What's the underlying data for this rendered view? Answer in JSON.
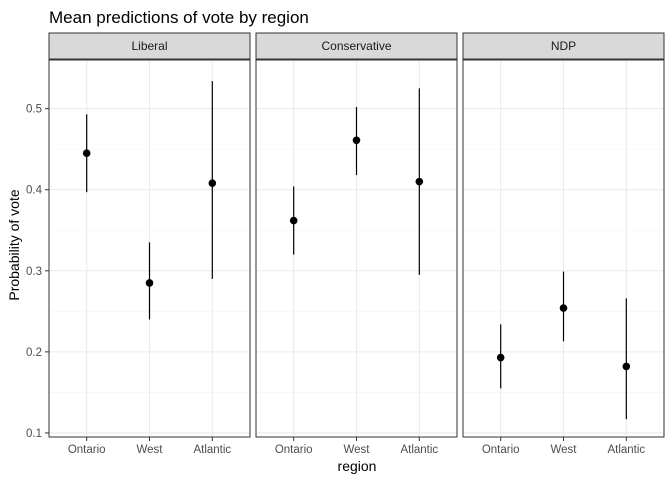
{
  "chart_data": {
    "type": "scatter",
    "title": "Mean predictions of vote by region",
    "xlabel": "region",
    "ylabel": "Probability of vote",
    "categories": [
      "Ontario",
      "West",
      "Atlantic"
    ],
    "ylim": [
      0.095,
      0.56
    ],
    "yticks": [
      0.1,
      0.2,
      0.3,
      0.4,
      0.5
    ],
    "grid": true,
    "facets": [
      {
        "name": "Liberal",
        "points": [
          {
            "x": "Ontario",
            "y": 0.445,
            "lower": 0.397,
            "upper": 0.493
          },
          {
            "x": "West",
            "y": 0.285,
            "lower": 0.24,
            "upper": 0.335
          },
          {
            "x": "Atlantic",
            "y": 0.408,
            "lower": 0.29,
            "upper": 0.534
          }
        ]
      },
      {
        "name": "Conservative",
        "points": [
          {
            "x": "Ontario",
            "y": 0.362,
            "lower": 0.32,
            "upper": 0.404
          },
          {
            "x": "West",
            "y": 0.461,
            "lower": 0.418,
            "upper": 0.502
          },
          {
            "x": "Atlantic",
            "y": 0.41,
            "lower": 0.295,
            "upper": 0.525
          }
        ]
      },
      {
        "name": "NDP",
        "points": [
          {
            "x": "Ontario",
            "y": 0.193,
            "lower": 0.155,
            "upper": 0.234
          },
          {
            "x": "West",
            "y": 0.254,
            "lower": 0.213,
            "upper": 0.299
          },
          {
            "x": "Atlantic",
            "y": 0.182,
            "lower": 0.117,
            "upper": 0.266
          }
        ]
      }
    ]
  }
}
